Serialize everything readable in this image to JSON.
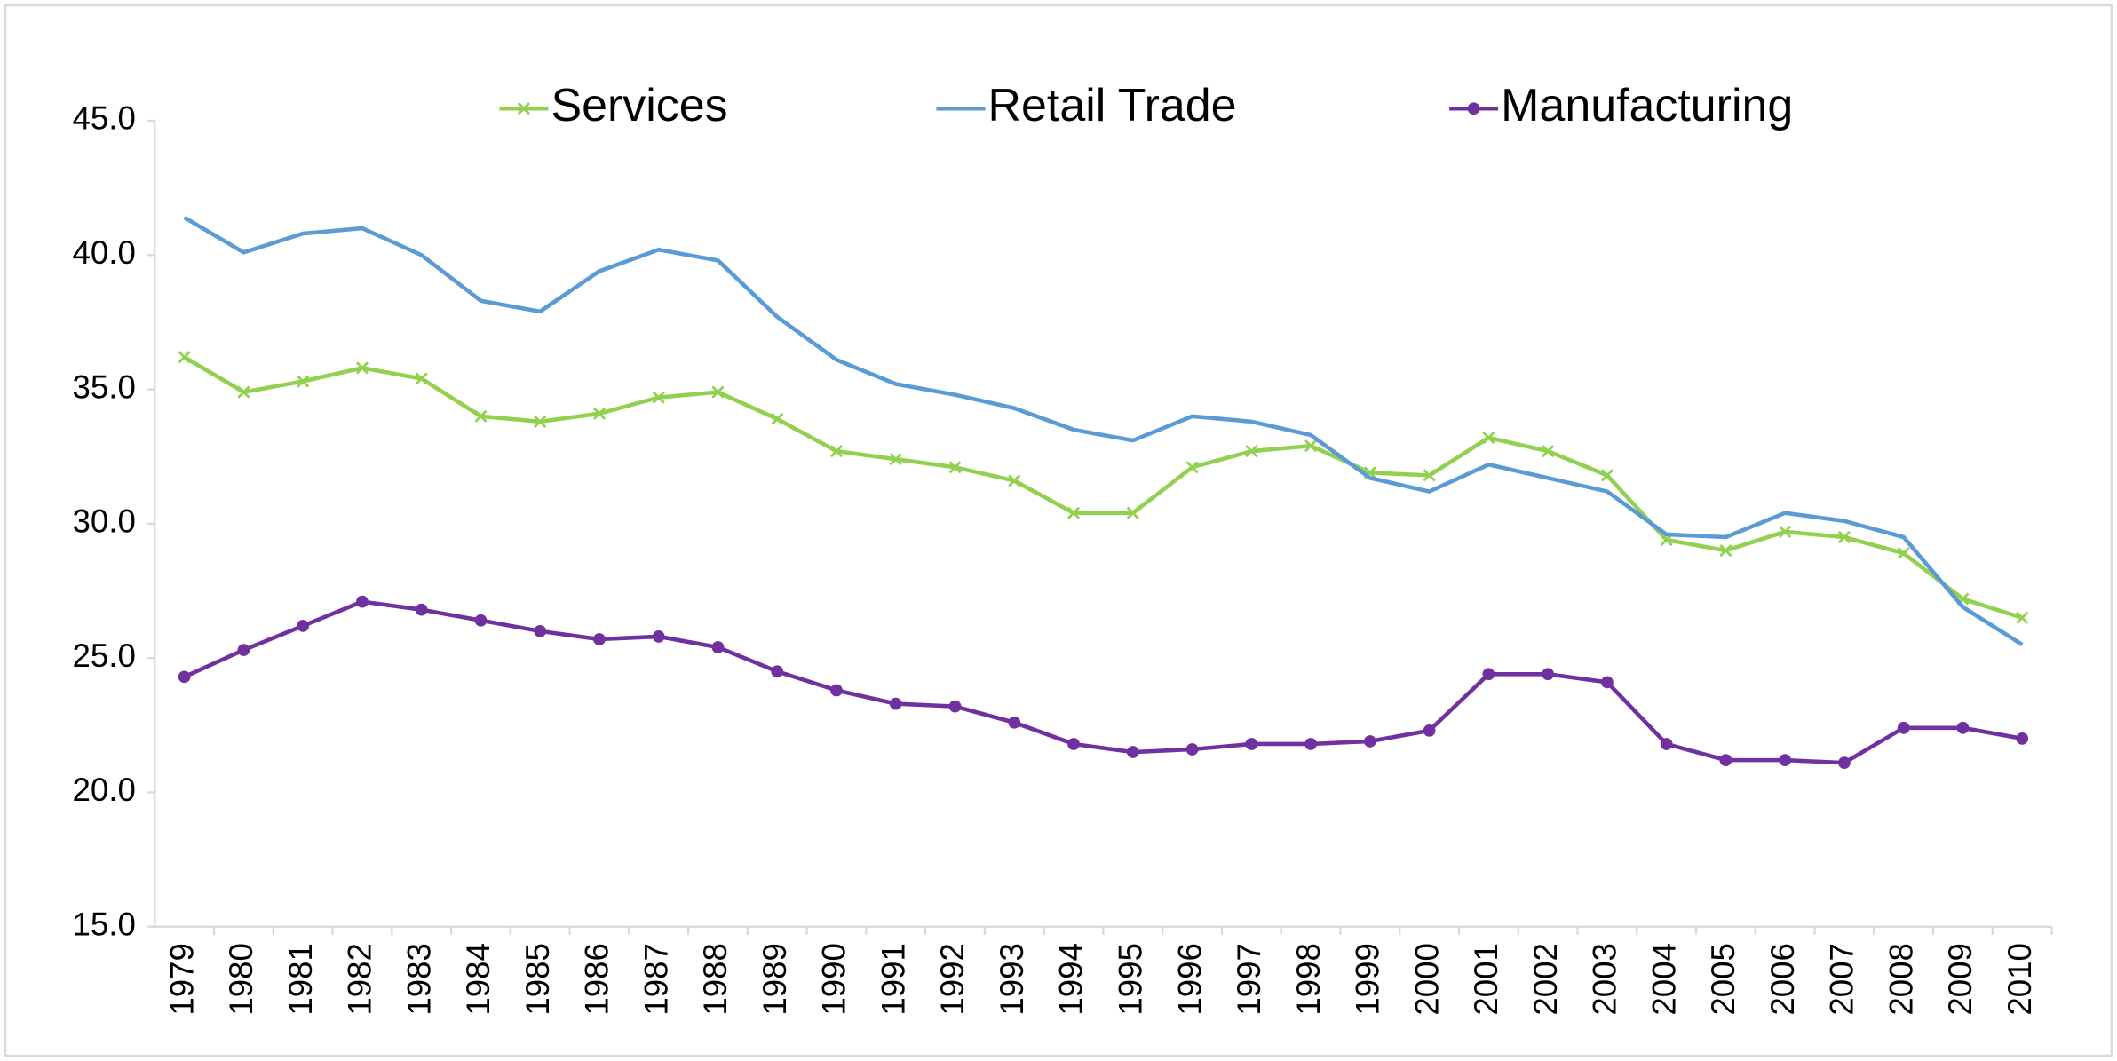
{
  "chart_data": {
    "type": "line",
    "categories": [
      "1979",
      "1980",
      "1981",
      "1982",
      "1983",
      "1984",
      "1985",
      "1986",
      "1987",
      "1988",
      "1989",
      "1990",
      "1991",
      "1992",
      "1993",
      "1994",
      "1995",
      "1996",
      "1997",
      "1998",
      "1999",
      "2000",
      "2001",
      "2002",
      "2003",
      "2004",
      "2005",
      "2006",
      "2007",
      "2008",
      "2009",
      "2010"
    ],
    "series": [
      {
        "name": "Services",
        "color": "#92d050",
        "marker": "x",
        "values": [
          36.2,
          34.9,
          35.3,
          35.8,
          35.4,
          34.0,
          33.8,
          34.1,
          34.7,
          34.9,
          33.9,
          32.7,
          32.4,
          32.1,
          31.6,
          30.4,
          30.4,
          32.1,
          32.7,
          32.9,
          31.9,
          31.8,
          33.2,
          32.7,
          31.8,
          29.4,
          29.0,
          29.7,
          29.5,
          28.9,
          27.2,
          26.5
        ]
      },
      {
        "name": "Retail Trade",
        "color": "#5b9bd5",
        "marker": "none",
        "values": [
          41.4,
          40.1,
          40.8,
          41.0,
          40.0,
          38.3,
          37.9,
          39.4,
          40.2,
          39.8,
          37.7,
          36.1,
          35.2,
          34.8,
          34.3,
          33.5,
          33.1,
          34.0,
          33.8,
          33.3,
          31.7,
          31.2,
          32.2,
          31.7,
          31.2,
          29.6,
          29.5,
          30.4,
          30.1,
          29.5,
          26.9,
          25.5
        ]
      },
      {
        "name": "Manufacturing",
        "color": "#7030a0",
        "marker": "circle",
        "values": [
          24.3,
          25.3,
          26.2,
          27.1,
          26.8,
          26.4,
          26.0,
          25.7,
          25.8,
          25.4,
          24.5,
          23.8,
          23.3,
          23.2,
          22.6,
          21.8,
          21.5,
          21.6,
          21.8,
          21.8,
          21.9,
          22.3,
          24.4,
          24.4,
          24.1,
          21.8,
          21.2,
          21.2,
          21.1,
          22.4,
          22.4,
          22.0
        ]
      }
    ],
    "ylim": [
      15,
      45
    ],
    "yticks": [
      {
        "value": 15,
        "label": "15.0"
      },
      {
        "value": 20,
        "label": "20.0"
      },
      {
        "value": 25,
        "label": "25.0"
      },
      {
        "value": 30,
        "label": "30.0"
      },
      {
        "value": 35,
        "label": "35.0"
      },
      {
        "value": 40,
        "label": "40.0"
      },
      {
        "value": 45,
        "label": "45.0"
      }
    ],
    "grid": false,
    "legend": "top"
  }
}
